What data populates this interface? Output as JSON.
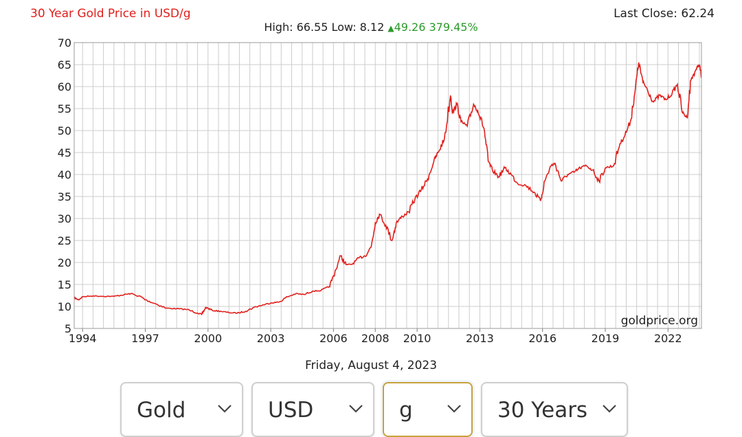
{
  "header": {
    "title": "30 Year Gold Price in USD/g",
    "last_close_label": "Last Close: 62.24",
    "high_label": "High:",
    "high": "66.55",
    "low_label": "Low:",
    "low": "8.12",
    "change_arrow": "▲",
    "change": "49.26",
    "change_pct": "379.45%"
  },
  "watermark": "goldprice.org",
  "date_label": "Friday, August 4, 2023",
  "controls": {
    "metal": "Gold",
    "currency": "USD",
    "unit": "g",
    "period": "30 Years"
  },
  "colors": {
    "line": "#e0201c",
    "up": "#2a9a2a",
    "grid": "#cccccc"
  },
  "chart_data": {
    "type": "line",
    "title": "30 Year Gold Price in USD/g",
    "ylim": [
      5,
      70
    ],
    "xlim": [
      1993.6,
      2023.6
    ],
    "yticks": [
      5,
      10,
      15,
      20,
      25,
      30,
      35,
      40,
      45,
      50,
      55,
      60,
      65,
      70
    ],
    "xticks": [
      1994,
      1997,
      2000,
      2003,
      2006,
      2008,
      2010,
      2013,
      2016,
      2019,
      2022
    ],
    "grid": true,
    "series": [
      {
        "x": [
          1993.6,
          1993.8,
          1994.0,
          1994.5,
          1995.0,
          1995.5,
          1996.0,
          1996.3,
          1996.8,
          1997.0,
          1997.5,
          1998.0,
          1998.5,
          1999.0,
          1999.5,
          1999.7,
          1999.9,
          2000.2,
          2000.6,
          2001.0,
          2001.4,
          2001.8,
          2002.2,
          2002.6,
          2003.0,
          2003.4,
          2003.8,
          2004.2,
          2004.6,
          2005.0,
          2005.4,
          2005.8,
          2006.0,
          2006.35,
          2006.6,
          2006.9,
          2007.2,
          2007.5,
          2007.8,
          2008.0,
          2008.2,
          2008.5,
          2008.8,
          2009.0,
          2009.3,
          2009.6,
          2009.9,
          2010.2,
          2010.5,
          2010.8,
          2011.0,
          2011.3,
          2011.6,
          2011.7,
          2011.9,
          2012.1,
          2012.4,
          2012.7,
          2012.9,
          2013.2,
          2013.4,
          2013.6,
          2013.9,
          2014.2,
          2014.5,
          2014.8,
          2015.2,
          2015.6,
          2015.9,
          2016.1,
          2016.4,
          2016.6,
          2016.9,
          2017.2,
          2017.5,
          2017.8,
          2018.1,
          2018.4,
          2018.7,
          2019.0,
          2019.4,
          2019.7,
          2019.9,
          2020.2,
          2020.45,
          2020.6,
          2020.8,
          2021.0,
          2021.3,
          2021.6,
          2021.9,
          2022.2,
          2022.45,
          2022.7,
          2022.9,
          2023.1,
          2023.35,
          2023.5,
          2023.6
        ],
        "y": [
          12.0,
          11.5,
          12.2,
          12.4,
          12.3,
          12.3,
          12.7,
          12.9,
          12.2,
          11.5,
          10.6,
          9.6,
          9.5,
          9.3,
          8.5,
          8.2,
          9.8,
          9.1,
          8.9,
          8.6,
          8.5,
          8.9,
          9.8,
          10.3,
          10.8,
          11.0,
          12.2,
          12.9,
          12.7,
          13.5,
          13.6,
          14.5,
          17.0,
          21.5,
          19.5,
          19.6,
          21.0,
          21.5,
          23.5,
          29.0,
          31.0,
          28.5,
          25.0,
          29.0,
          30.5,
          31.5,
          34.5,
          36.5,
          39.0,
          43.0,
          45.0,
          48.0,
          58.0,
          54.0,
          56.0,
          52.0,
          51.0,
          56.0,
          54.5,
          50.5,
          43.0,
          41.0,
          39.5,
          41.5,
          40.0,
          38.0,
          37.5,
          36.0,
          34.0,
          38.5,
          42.0,
          42.5,
          38.5,
          40.0,
          40.5,
          41.5,
          42.0,
          41.0,
          38.5,
          41.5,
          42.0,
          47.0,
          48.5,
          52.0,
          60.0,
          65.5,
          61.0,
          59.5,
          56.5,
          58.0,
          57.0,
          58.5,
          60.5,
          54.0,
          53.0,
          61.5,
          64.0,
          65.0,
          62.24
        ]
      }
    ]
  }
}
